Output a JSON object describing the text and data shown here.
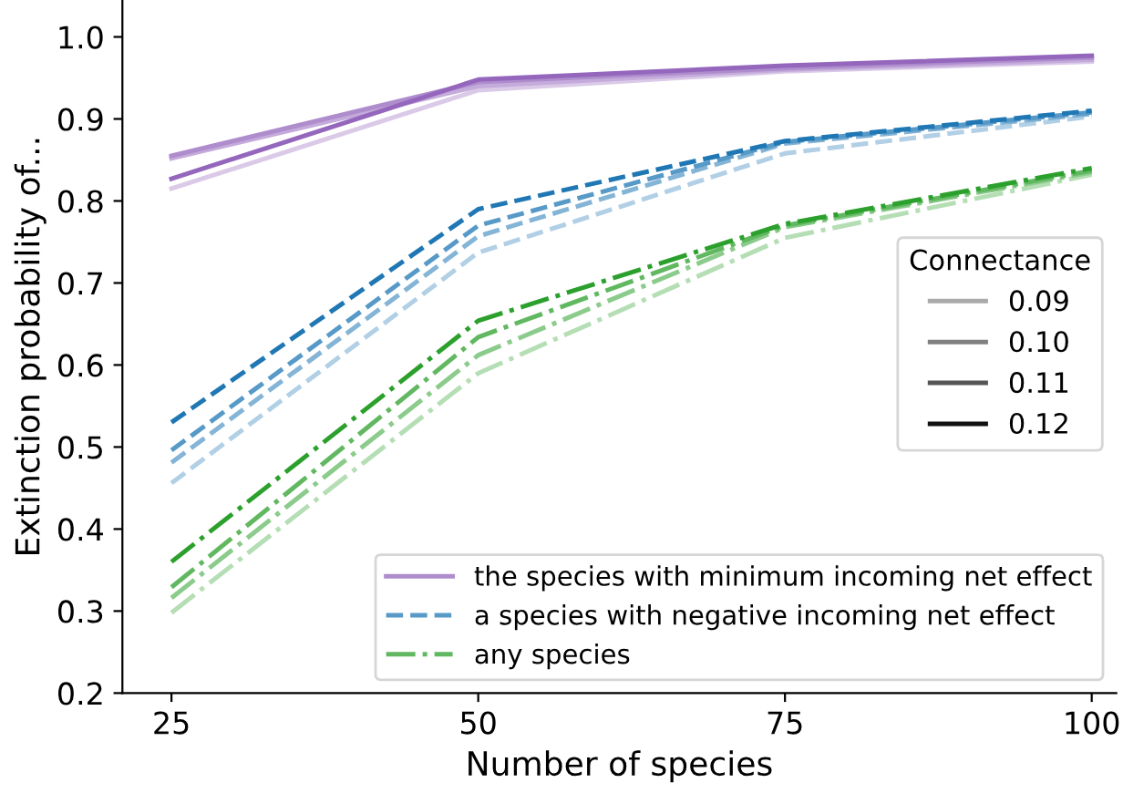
{
  "chart_data": {
    "type": "line",
    "xlabel": "Number of species",
    "ylabel": "Extinction probability of...",
    "x": [
      25,
      50,
      75,
      100
    ],
    "xlim": [
      21,
      102
    ],
    "xticks": [
      25,
      50,
      75,
      100
    ],
    "ylim": [
      0.2,
      1.045
    ],
    "yticks": [
      0.2,
      0.3,
      0.4,
      0.5,
      0.6,
      0.7,
      0.8,
      0.9,
      {
        "value": 1.0,
        "label": "1.0"
      }
    ],
    "grid": false,
    "legend": "bottom right",
    "legend_title": "Connectance",
    "series": [
      {
        "color": "#dacae8",
        "line_style": "solid",
        "values": [
          0.815,
          0.935,
          0.958,
          0.97
        ]
      },
      {
        "color": "#c4abdb",
        "line_style": "solid",
        "values": [
          0.852,
          0.94,
          0.96,
          0.972
        ]
      },
      {
        "color": "#af8dcd",
        "line_style": "solid",
        "values": [
          0.855,
          0.945,
          0.962,
          0.975
        ]
      },
      {
        "color": "#9467bd",
        "line_style": "solid",
        "values": [
          0.827,
          0.948,
          0.965,
          0.977
        ]
      },
      {
        "color": "#b1cfe5",
        "line_style": "dashed",
        "values": [
          0.456,
          0.737,
          0.858,
          0.903
        ]
      },
      {
        "color": "#84b4d6",
        "line_style": "dashed",
        "values": [
          0.481,
          0.757,
          0.87,
          0.906
        ]
      },
      {
        "color": "#5799c7",
        "line_style": "dashed",
        "values": [
          0.496,
          0.77,
          0.872,
          0.908
        ]
      },
      {
        "color": "#1f77b4",
        "line_style": "dashed",
        "values": [
          0.53,
          0.79,
          0.873,
          0.91
        ]
      },
      {
        "color": "#b5deb5",
        "line_style": "dashdot",
        "values": [
          0.298,
          0.59,
          0.755,
          0.832
        ]
      },
      {
        "color": "#8bcb8b",
        "line_style": "dashdot",
        "values": [
          0.316,
          0.612,
          0.768,
          0.835
        ]
      },
      {
        "color": "#61b861",
        "line_style": "dashdot",
        "values": [
          0.329,
          0.634,
          0.77,
          0.837
        ]
      },
      {
        "color": "#2ca02c",
        "line_style": "dashdot",
        "values": [
          0.36,
          0.654,
          0.772,
          0.84
        ]
      },
      {
        "name": "the species with minimum incoming net effect",
        "color": "#af8dcd",
        "line_style": "solid",
        "values": [
          null,
          null,
          null,
          null
        ]
      },
      {
        "name": "a species with negative incoming net effect",
        "color": "#5799c7",
        "line_style": "dashed",
        "values": [
          null,
          null,
          null,
          null
        ]
      },
      {
        "name": "any species",
        "color": "#61b861",
        "line_style": "dashdot",
        "values": [
          null,
          null,
          null,
          null
        ]
      },
      {
        "name": "0.09",
        "color": "#aaaaaa",
        "values": [
          null,
          null,
          null,
          null
        ]
      },
      {
        "name": "0.10",
        "color": "#808080",
        "values": [
          null,
          null,
          null,
          null
        ]
      },
      {
        "name": "0.11",
        "color": "#555555",
        "values": [
          null,
          null,
          null,
          null
        ]
      },
      {
        "name": "0.12",
        "color": "#111111",
        "values": [
          null,
          null,
          null,
          null
        ]
      }
    ]
  }
}
